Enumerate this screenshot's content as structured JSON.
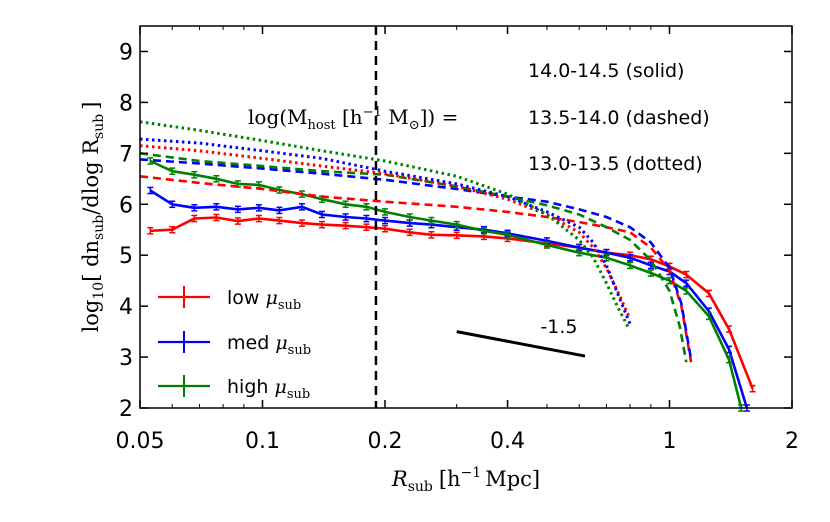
{
  "chart_data": {
    "type": "line",
    "title": "",
    "xlabel_main": "R",
    "xlabel_sub": "sub",
    "xlabel_unit_open": "[h",
    "xlabel_unit_exp": "−1",
    "xlabel_unit_close": "Mpc]",
    "ylabel_main": "log",
    "ylabel_sub10": "10",
    "ylabel_expr": "[ dn",
    "ylabel_sub1": "sub",
    "ylabel_expr2": "/dlog R",
    "ylabel_sub2": "sub",
    "ylabel_close": "]",
    "x_scale": "log",
    "xlim": [
      0.05,
      2
    ],
    "ylim": [
      2,
      9.5
    ],
    "x_ticks": [
      {
        "value": 0.05,
        "label": "0.05"
      },
      {
        "value": 0.1,
        "label": "0.1"
      },
      {
        "value": 0.2,
        "label": "0.2"
      },
      {
        "value": 0.4,
        "label": "0.4"
      },
      {
        "value": 1,
        "label": "1"
      },
      {
        "value": 2,
        "label": "2"
      }
    ],
    "y_ticks": [
      {
        "value": 2,
        "label": "2"
      },
      {
        "value": 3,
        "label": "3"
      },
      {
        "value": 4,
        "label": "4"
      },
      {
        "value": 5,
        "label": "5"
      },
      {
        "value": 6,
        "label": "6"
      },
      {
        "value": 7,
        "label": "7"
      },
      {
        "value": 8,
        "label": "8"
      },
      {
        "value": 9,
        "label": "9"
      }
    ],
    "vline": {
      "x": 0.19,
      "style": "dashed"
    },
    "mass_label": {
      "prefix": "log(M",
      "sub": "host",
      "unit": " [h",
      "exp": "−1",
      "unit2": " M",
      "sun": "⊙",
      "close": "]) ="
    },
    "annotations": [
      {
        "text": "14.0-14.5 (solid)"
      },
      {
        "text": "13.5-14.0 (dashed)"
      },
      {
        "text": "13.0-13.5 (dotted)"
      }
    ],
    "slope_line": {
      "label": "-1.5",
      "x": [
        0.3,
        0.62
      ],
      "y": [
        3.5,
        3.02
      ]
    },
    "legend": {
      "placement": "lower-left",
      "entries": [
        {
          "label": "low",
          "symbol": "μ",
          "sub": "sub",
          "color": "#ff0000"
        },
        {
          "label": "med",
          "symbol": "μ",
          "sub": "sub",
          "color": "#0000ff"
        },
        {
          "label": "high",
          "symbol": "μ",
          "sub": "sub",
          "color": "#008000"
        }
      ]
    },
    "series": [
      {
        "name": "low μsub 14.0-14.5",
        "color": "#ff0000",
        "style": "solid",
        "errorbars": true,
        "x": [
          0.053,
          0.06,
          0.068,
          0.077,
          0.087,
          0.098,
          0.11,
          0.125,
          0.14,
          0.16,
          0.18,
          0.2,
          0.23,
          0.26,
          0.3,
          0.35,
          0.4,
          0.5,
          0.6,
          0.7,
          0.8,
          0.9,
          1.0,
          1.1,
          1.25,
          1.4,
          1.6
        ],
        "y": [
          5.48,
          5.5,
          5.72,
          5.74,
          5.67,
          5.72,
          5.68,
          5.63,
          5.6,
          5.58,
          5.55,
          5.52,
          5.45,
          5.4,
          5.39,
          5.37,
          5.33,
          5.23,
          5.15,
          5.05,
          5.0,
          4.92,
          4.78,
          4.62,
          4.25,
          3.55,
          2.38
        ]
      },
      {
        "name": "med μsub 14.0-14.5",
        "color": "#0000ff",
        "style": "solid",
        "errorbars": true,
        "x": [
          0.053,
          0.06,
          0.068,
          0.077,
          0.087,
          0.098,
          0.11,
          0.125,
          0.14,
          0.16,
          0.18,
          0.2,
          0.23,
          0.26,
          0.3,
          0.35,
          0.4,
          0.5,
          0.6,
          0.7,
          0.8,
          0.9,
          1.0,
          1.1,
          1.25,
          1.4,
          1.55
        ],
        "y": [
          6.27,
          6.0,
          5.93,
          5.95,
          5.9,
          5.93,
          5.88,
          5.95,
          5.8,
          5.75,
          5.72,
          5.68,
          5.63,
          5.6,
          5.55,
          5.5,
          5.43,
          5.28,
          5.15,
          5.05,
          4.95,
          4.8,
          4.68,
          4.45,
          3.9,
          3.15,
          2.0
        ]
      },
      {
        "name": "high μsub 14.0-14.5",
        "color": "#008000",
        "style": "solid",
        "errorbars": true,
        "x": [
          0.053,
          0.06,
          0.068,
          0.077,
          0.087,
          0.098,
          0.11,
          0.125,
          0.14,
          0.16,
          0.18,
          0.2,
          0.23,
          0.26,
          0.3,
          0.35,
          0.4,
          0.5,
          0.6,
          0.7,
          0.8,
          0.9,
          1.0,
          1.1,
          1.25,
          1.4,
          1.5
        ],
        "y": [
          6.85,
          6.65,
          6.58,
          6.5,
          6.4,
          6.38,
          6.28,
          6.2,
          6.1,
          6.0,
          5.95,
          5.85,
          5.75,
          5.68,
          5.6,
          5.48,
          5.4,
          5.2,
          5.05,
          4.95,
          4.8,
          4.65,
          4.5,
          4.3,
          3.8,
          2.95,
          2.0
        ]
      },
      {
        "name": "low μsub 13.5-14.0",
        "color": "#ff0000",
        "style": "dashed",
        "x": [
          0.05,
          0.07,
          0.1,
          0.14,
          0.2,
          0.3,
          0.4,
          0.5,
          0.6,
          0.7,
          0.8,
          0.9,
          1.0,
          1.07,
          1.13
        ],
        "y": [
          6.55,
          6.42,
          6.3,
          6.15,
          6.05,
          5.95,
          5.85,
          5.75,
          5.65,
          5.55,
          5.45,
          5.15,
          4.7,
          4.0,
          2.9
        ]
      },
      {
        "name": "med μsub 13.5-14.0",
        "color": "#0000ff",
        "style": "dashed",
        "x": [
          0.05,
          0.07,
          0.1,
          0.14,
          0.2,
          0.3,
          0.4,
          0.5,
          0.6,
          0.7,
          0.8,
          0.9,
          1.0,
          1.07,
          1.13
        ],
        "y": [
          6.88,
          6.8,
          6.7,
          6.6,
          6.48,
          6.3,
          6.15,
          6.05,
          5.9,
          5.75,
          5.55,
          5.25,
          4.75,
          4.05,
          2.95
        ]
      },
      {
        "name": "high μsub 13.5-14.0",
        "color": "#008000",
        "style": "dashed",
        "x": [
          0.05,
          0.07,
          0.1,
          0.14,
          0.2,
          0.3,
          0.4,
          0.5,
          0.6,
          0.7,
          0.8,
          0.9,
          1.0,
          1.06,
          1.1
        ],
        "y": [
          7.0,
          6.85,
          6.75,
          6.65,
          6.58,
          6.35,
          6.15,
          5.98,
          5.8,
          5.55,
          5.3,
          4.9,
          4.3,
          3.6,
          2.9
        ]
      },
      {
        "name": "low μsub 13.0-13.5",
        "color": "#ff0000",
        "style": "dotted",
        "x": [
          0.05,
          0.07,
          0.1,
          0.14,
          0.2,
          0.3,
          0.4,
          0.5,
          0.6,
          0.65,
          0.7,
          0.75,
          0.8
        ],
        "y": [
          7.15,
          7.05,
          6.9,
          6.75,
          6.6,
          6.35,
          6.1,
          5.8,
          5.45,
          5.15,
          4.75,
          4.25,
          3.75
        ]
      },
      {
        "name": "med μsub 13.0-13.5",
        "color": "#0000ff",
        "style": "dotted",
        "x": [
          0.05,
          0.07,
          0.1,
          0.14,
          0.2,
          0.3,
          0.4,
          0.5,
          0.6,
          0.65,
          0.7,
          0.75,
          0.8
        ],
        "y": [
          7.28,
          7.2,
          7.05,
          6.9,
          6.65,
          6.4,
          6.15,
          5.85,
          5.55,
          5.25,
          4.8,
          4.2,
          3.65
        ]
      },
      {
        "name": "high μsub 13.0-13.5",
        "color": "#008000",
        "style": "dotted",
        "x": [
          0.05,
          0.07,
          0.1,
          0.14,
          0.2,
          0.3,
          0.4,
          0.5,
          0.6,
          0.65,
          0.7,
          0.75,
          0.79
        ],
        "y": [
          7.62,
          7.45,
          7.25,
          7.05,
          6.85,
          6.55,
          6.2,
          5.8,
          5.3,
          4.95,
          4.45,
          3.95,
          3.6
        ]
      }
    ]
  }
}
